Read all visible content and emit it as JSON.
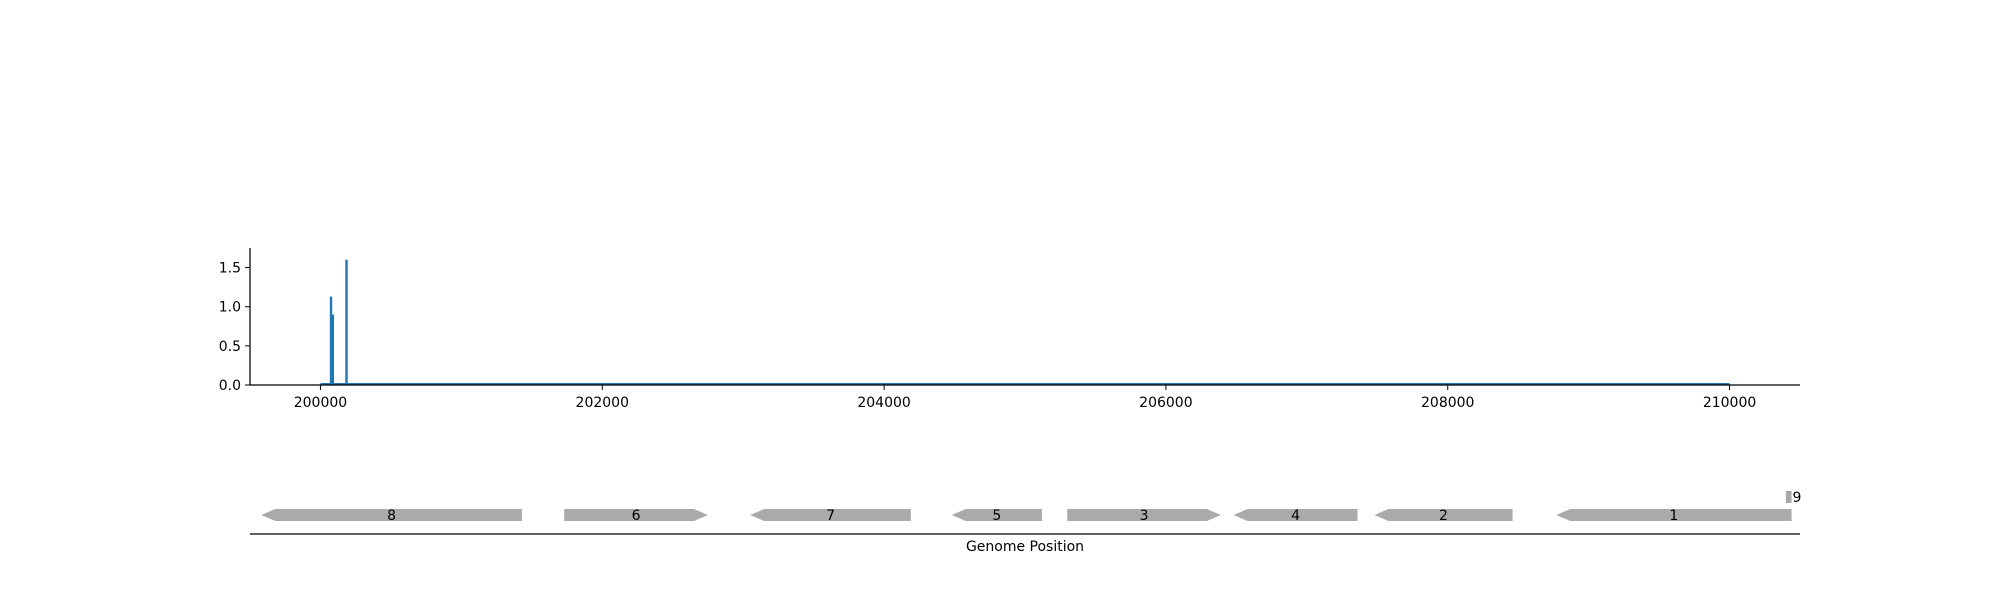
{
  "chart_data": [
    {
      "type": "bar",
      "title": "",
      "xlabel": "",
      "ylabel": "",
      "xlim": [
        199500,
        210500
      ],
      "ylim": [
        0,
        1.75
      ],
      "xticks": [
        200000,
        202000,
        204000,
        206000,
        208000,
        210000
      ],
      "xtick_labels": [
        "200000",
        "202000",
        "204000",
        "206000",
        "208000",
        "210000"
      ],
      "yticks": [
        0.0,
        0.5,
        1.0,
        1.5
      ],
      "ytick_labels": [
        "0.0",
        "0.5",
        "1.0",
        "1.5"
      ],
      "baseline": {
        "x_start": 200000,
        "x_end": 210000,
        "y": 0
      },
      "x": [
        200075,
        200088,
        200185
      ],
      "values": [
        1.13,
        0.9,
        1.6
      ],
      "color": "#1f77b4",
      "grid": false,
      "legend": "none"
    },
    {
      "type": "gene-track",
      "xlabel": "Genome Position",
      "xlim": [
        199500,
        210500
      ],
      "color": "#aaaaaa",
      "genes": [
        {
          "label": "8",
          "start": 199580,
          "end": 201430,
          "strand": "-"
        },
        {
          "label": "6",
          "start": 201730,
          "end": 202750,
          "strand": "+"
        },
        {
          "label": "7",
          "start": 203050,
          "end": 204190,
          "strand": "-"
        },
        {
          "label": "5",
          "start": 204480,
          "end": 205120,
          "strand": "-"
        },
        {
          "label": "3",
          "start": 205300,
          "end": 206390,
          "strand": "+"
        },
        {
          "label": "4",
          "start": 206480,
          "end": 207360,
          "strand": "-"
        },
        {
          "label": "2",
          "start": 207480,
          "end": 208460,
          "strand": "-"
        },
        {
          "label": "1",
          "start": 208770,
          "end": 210440,
          "strand": "-"
        },
        {
          "label": "9",
          "start": 210400,
          "end": 210440,
          "strand": "+",
          "row": 1
        }
      ]
    }
  ]
}
